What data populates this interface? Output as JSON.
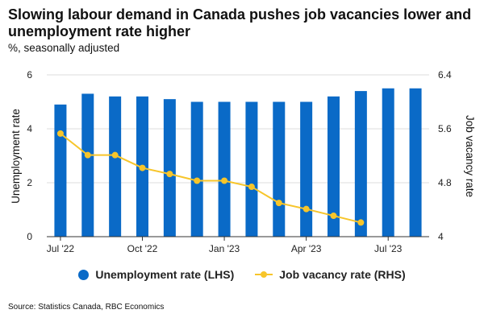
{
  "chart_data": {
    "type": "bar+line",
    "title": "Slowing labour demand in Canada pushes job vacancies lower and unemployment rate higher",
    "subtitle": "%, seasonally adjusted",
    "x_tick_labels": [
      "Jul '22",
      "Oct '22",
      "Jan '23",
      "Apr '23",
      "Jul '23"
    ],
    "x_tick_index": [
      0,
      3,
      6,
      9,
      12
    ],
    "categories": [
      "Jul 2022",
      "Aug 2022",
      "Sep 2022",
      "Oct 2022",
      "Nov 2022",
      "Dec 2022",
      "Jan 2023",
      "Feb 2023",
      "Mar 2023",
      "Apr 2023",
      "May 2023",
      "Jun 2023",
      "Jul 2023",
      "Aug 2023"
    ],
    "series": [
      {
        "name": "Unemployment rate (LHS)",
        "type": "bar",
        "axis": "left",
        "color": "#0a6ac7",
        "values": [
          4.9,
          5.3,
          5.2,
          5.2,
          5.1,
          5.0,
          5.0,
          5.0,
          5.0,
          5.0,
          5.2,
          5.4,
          5.5,
          5.5
        ]
      },
      {
        "name": "Job vacancy rate (RHS)",
        "type": "line",
        "axis": "right",
        "color": "#f7c52a",
        "values": [
          5.53,
          5.21,
          5.21,
          5.02,
          4.93,
          4.83,
          4.83,
          4.74,
          4.5,
          4.41,
          4.31,
          4.21,
          null,
          null
        ]
      }
    ],
    "y_left": {
      "label": "Unemployment rate",
      "min": 0,
      "max": 6,
      "ticks": [
        0,
        2,
        4,
        6
      ]
    },
    "y_right": {
      "label": "Job vacancy rate",
      "min": 4,
      "max": 6.4,
      "ticks": [
        4,
        4.8,
        5.6,
        6.4
      ]
    },
    "legend": [
      "Unemployment rate (LHS)",
      "Job vacancy rate (RHS)"
    ],
    "grid": true,
    "legend_position": "bottom"
  },
  "source": "Source: Statistics Canada, RBC Economics"
}
